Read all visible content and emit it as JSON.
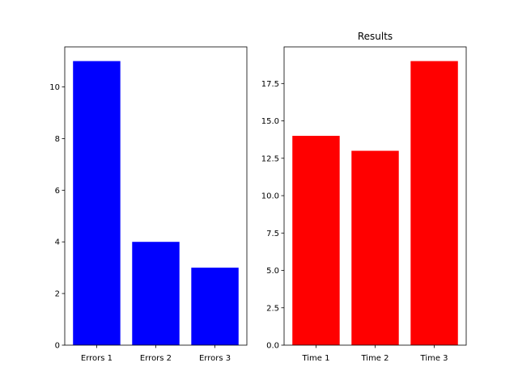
{
  "chart_data": [
    {
      "type": "bar",
      "title": "",
      "xlabel": "",
      "ylabel": "",
      "categories": [
        "Errors 1",
        "Errors 2",
        "Errors 3"
      ],
      "values": [
        11,
        4,
        3
      ],
      "ylim": [
        0,
        11.55
      ],
      "yticks": [
        0,
        2,
        4,
        6,
        8,
        10
      ],
      "ytick_labels": [
        "0",
        "2",
        "4",
        "6",
        "8",
        "10"
      ],
      "color": "#0000ff",
      "grid": false
    },
    {
      "type": "bar",
      "title": "Results",
      "xlabel": "",
      "ylabel": "",
      "categories": [
        "Time 1",
        "Time 2",
        "Time 3"
      ],
      "values": [
        14,
        13,
        19
      ],
      "ylim": [
        0,
        19.95
      ],
      "yticks": [
        0,
        2.5,
        5,
        7.5,
        10,
        12.5,
        15,
        17.5
      ],
      "ytick_labels": [
        "0.0",
        "2.5",
        "5.0",
        "7.5",
        "10.0",
        "12.5",
        "15.0",
        "17.5"
      ],
      "color": "#ff0000",
      "grid": false
    }
  ]
}
